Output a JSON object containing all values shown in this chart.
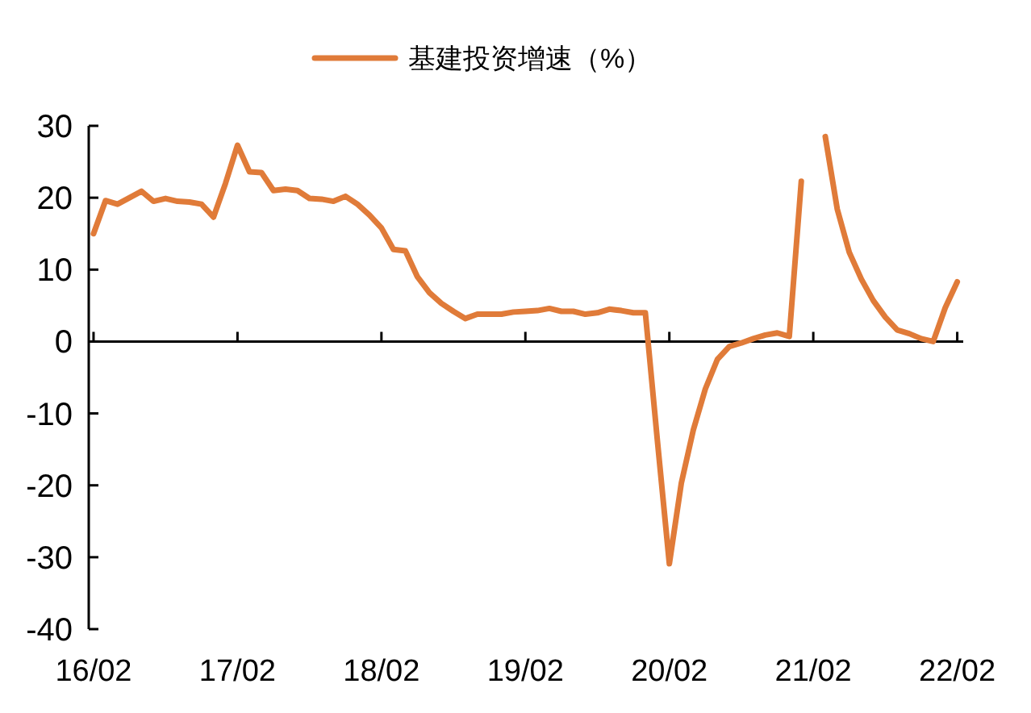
{
  "chart_data": {
    "type": "line",
    "legend": "top",
    "categories": [
      "16/02",
      null,
      null,
      null,
      null,
      null,
      null,
      null,
      null,
      null,
      null,
      null,
      "17/02",
      null,
      null,
      null,
      null,
      null,
      null,
      null,
      null,
      null,
      null,
      null,
      "18/02",
      null,
      null,
      null,
      null,
      null,
      null,
      null,
      null,
      null,
      null,
      null,
      "19/02",
      null,
      null,
      null,
      null,
      null,
      null,
      null,
      null,
      null,
      null,
      null,
      "20/02",
      null,
      null,
      null,
      null,
      null,
      null,
      null,
      null,
      null,
      null,
      null,
      "21/02",
      null,
      null,
      null,
      null,
      null,
      null,
      null,
      null,
      null,
      null,
      null,
      "22/02"
    ],
    "series": [
      {
        "name": "基建投资增速（%）",
        "color": "#e07b39",
        "values": [
          15.0,
          19.6,
          19.1,
          20.0,
          20.9,
          19.5,
          19.9,
          19.5,
          19.4,
          19.1,
          17.3,
          22.0,
          27.3,
          23.6,
          23.5,
          21.0,
          21.2,
          21.0,
          19.9,
          19.8,
          19.5,
          20.2,
          19.1,
          17.6,
          15.8,
          12.8,
          12.6,
          9.0,
          6.8,
          5.3,
          4.2,
          3.2,
          3.8,
          3.8,
          3.8,
          4.1,
          4.2,
          4.3,
          4.6,
          4.2,
          4.2,
          3.8,
          4.0,
          4.5,
          4.3,
          4.0,
          4.0,
          -13.7,
          -30.9,
          -19.7,
          -12.3,
          -6.6,
          -2.5,
          -0.7,
          -0.2,
          0.4,
          0.9,
          1.2,
          0.7,
          22.3,
          null,
          28.5,
          18.4,
          12.4,
          8.7,
          5.7,
          3.4,
          1.6,
          1.1,
          0.4,
          0,
          4.7,
          8.3
        ]
      }
    ],
    "ylim": [
      -40,
      30
    ],
    "yticks": [
      30,
      20,
      10,
      0,
      -10,
      -20,
      -30,
      -40
    ]
  }
}
